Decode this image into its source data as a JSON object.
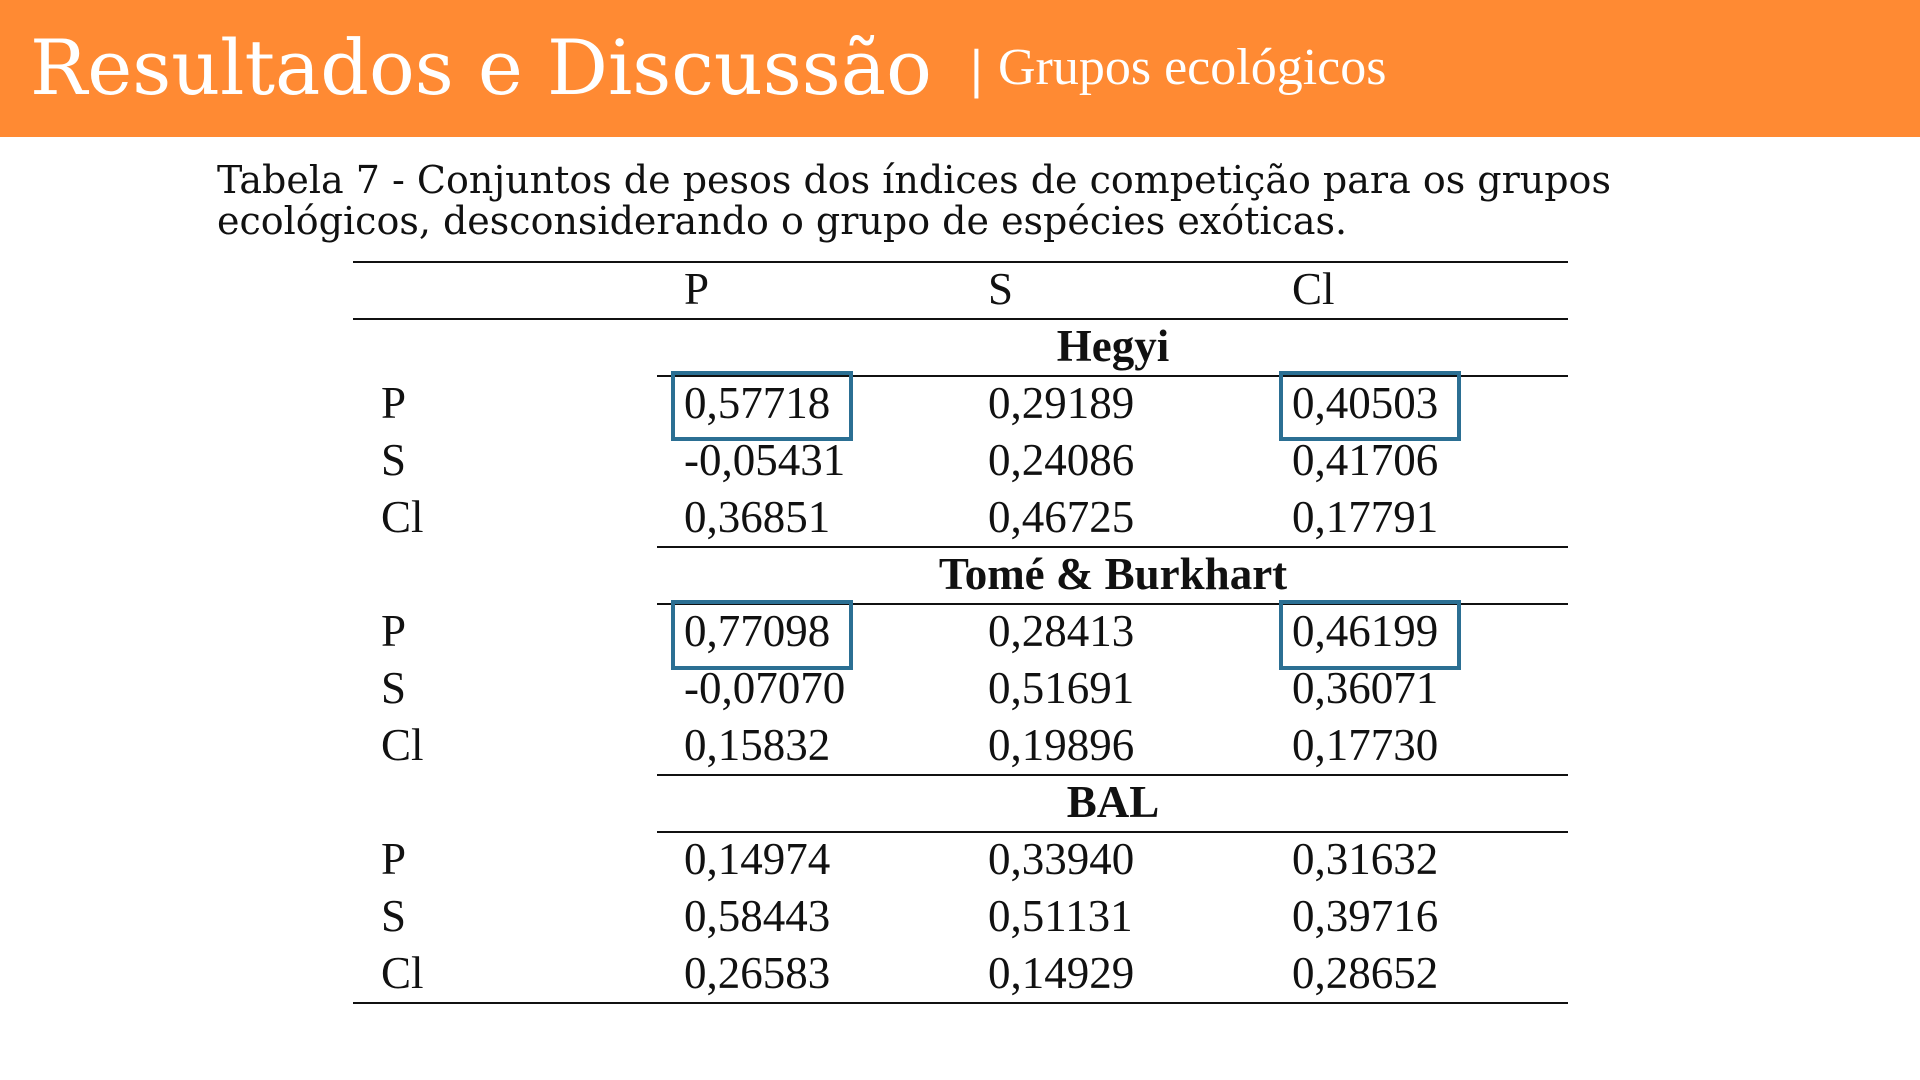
{
  "header": {
    "title": "Resultados e Discussão",
    "separator": "|",
    "subtitle": "Grupos ecológicos"
  },
  "caption": "Tabela 7 - Conjuntos de pesos dos índices de competição para os grupos ecológicos, desconsiderando o grupo de espécies exóticas.",
  "table": {
    "columns": [
      "",
      "P",
      "S",
      "Cl"
    ],
    "groups": [
      {
        "name": "Hegyi",
        "rows": [
          {
            "label": "P",
            "values": [
              "0,57718",
              "0,29189",
              "0,40503"
            ]
          },
          {
            "label": "S",
            "values": [
              "-0,05431",
              "0,24086",
              "0,41706"
            ]
          },
          {
            "label": "Cl",
            "values": [
              "0,36851",
              "0,46725",
              "0,17791"
            ]
          }
        ]
      },
      {
        "name": "Tomé & Burkhart",
        "rows": [
          {
            "label": "P",
            "values": [
              "0,77098",
              "0,28413",
              "0,46199"
            ]
          },
          {
            "label": "S",
            "values": [
              "-0,07070",
              "0,51691",
              "0,36071"
            ]
          },
          {
            "label": "Cl",
            "values": [
              "0,15832",
              "0,19896",
              "0,17730"
            ]
          }
        ]
      },
      {
        "name": "BAL",
        "rows": [
          {
            "label": "P",
            "values": [
              "0,14974",
              "0,33940",
              "0,31632"
            ]
          },
          {
            "label": "S",
            "values": [
              "0,58443",
              "0,51131",
              "0,39716"
            ]
          },
          {
            "label": "Cl",
            "values": [
              "0,26583",
              "0,14929",
              "0,28652"
            ]
          }
        ]
      }
    ],
    "highlight_color": "#2b6f93"
  },
  "colors": {
    "header_bg": "#ff8a33",
    "header_text": "#ffffff"
  }
}
